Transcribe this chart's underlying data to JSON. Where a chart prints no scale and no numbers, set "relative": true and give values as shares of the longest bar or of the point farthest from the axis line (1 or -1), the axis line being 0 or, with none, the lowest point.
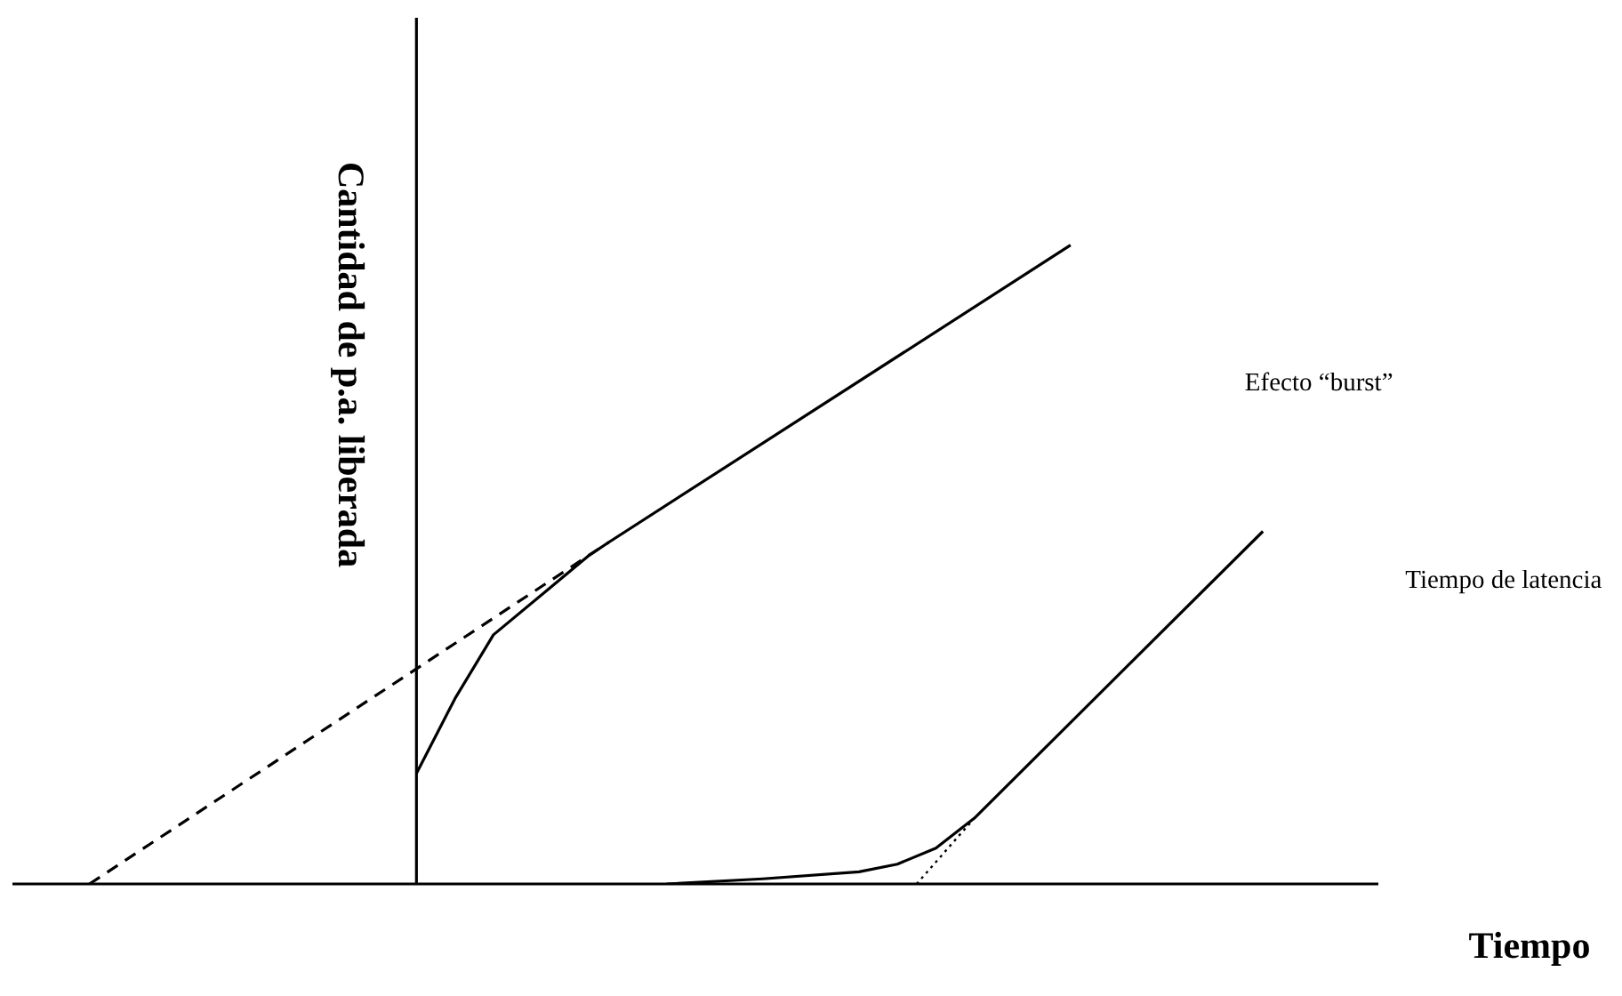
{
  "chart_data": {
    "type": "line",
    "xlabel": "Tiempo",
    "ylabel": "Cantidad de p.a. liberada",
    "relative": true,
    "tick_labels": false,
    "grid": false,
    "legend": false,
    "marker": "none",
    "categories": [
      null,
      null,
      null,
      null,
      null,
      null,
      null,
      null,
      null,
      null,
      null,
      null,
      null,
      null,
      null,
      null,
      null,
      null,
      null,
      null,
      null,
      null,
      null,
      null,
      null,
      null,
      null,
      null,
      null,
      null,
      null,
      null,
      null,
      null,
      null,
      null,
      null,
      null,
      null,
      null,
      null,
      null,
      null,
      null,
      null,
      null,
      null,
      null,
      null,
      null,
      null,
      null,
      null,
      null,
      null,
      null,
      null,
      null,
      null,
      null,
      null,
      null,
      null,
      null,
      null,
      null,
      null,
      null,
      null,
      null,
      null,
      null
    ],
    "series": [
      {
        "name": "Efecto “burst”",
        "color": "#000000",
        "line_style": "solid",
        "values": [
          null,
          null,
          null,
          null,
          null,
          null,
          null,
          null,
          null,
          null,
          null,
          null,
          null,
          null,
          null,
          null,
          null,
          null,
          null,
          null,
          null,
          0.173,
          null,
          0.29,
          null,
          0.39,
          null,
          null,
          0.465,
          null,
          0.515,
          0.535,
          null,
          null,
          null,
          null,
          null,
          null,
          null,
          null,
          null,
          null,
          null,
          null,
          null,
          null,
          null,
          null,
          null,
          null,
          null,
          null,
          null,
          null,
          null,
          1,
          null,
          null,
          null,
          null,
          null,
          null,
          null,
          null,
          null,
          null,
          null,
          null,
          null,
          null,
          null,
          null
        ]
      },
      {
        "color": "#000000",
        "line_style": "dashed",
        "values": [
          null,
          null,
          null,
          null,
          0,
          null,
          null,
          null,
          null,
          null,
          null,
          null,
          null,
          null,
          null,
          null,
          null,
          null,
          null,
          null,
          null,
          null,
          null,
          null,
          null,
          null,
          null,
          null,
          null,
          null,
          null,
          0.535,
          null,
          null,
          null,
          null,
          null,
          null,
          null,
          null,
          null,
          null,
          null,
          null,
          null,
          null,
          null,
          null,
          null,
          null,
          null,
          null,
          null,
          null,
          null,
          null,
          null,
          null,
          null,
          null,
          null,
          null,
          null,
          null,
          null,
          null,
          null,
          null,
          null,
          null,
          null,
          null
        ]
      },
      {
        "name": "Tiempo de latencia",
        "color": "#000000",
        "line_style": "solid",
        "values": [
          null,
          null,
          null,
          null,
          null,
          null,
          null,
          null,
          null,
          null,
          null,
          null,
          null,
          null,
          null,
          null,
          null,
          null,
          null,
          null,
          null,
          null,
          null,
          null,
          null,
          null,
          null,
          null,
          null,
          null,
          null,
          null,
          null,
          null,
          0,
          null,
          null,
          null,
          null,
          0.008,
          null,
          null,
          null,
          null,
          0.019,
          null,
          0.031,
          null,
          0.056,
          null,
          0.103,
          null,
          null,
          null,
          null,
          null,
          null,
          null,
          null,
          null,
          null,
          null,
          null,
          null,
          null,
          0.552,
          null,
          null,
          null,
          null,
          null,
          null
        ]
      },
      {
        "color": "#000000",
        "line_style": "dotted",
        "values": [
          null,
          null,
          null,
          null,
          null,
          null,
          null,
          null,
          null,
          null,
          null,
          null,
          null,
          null,
          null,
          null,
          null,
          null,
          null,
          null,
          null,
          null,
          null,
          null,
          null,
          null,
          null,
          null,
          null,
          null,
          null,
          null,
          null,
          null,
          null,
          null,
          null,
          null,
          null,
          null,
          null,
          null,
          null,
          null,
          null,
          null,
          null,
          0,
          null,
          null,
          0.103,
          null,
          null,
          null,
          null,
          null,
          null,
          null,
          null,
          null,
          null,
          null,
          null,
          null,
          null,
          null,
          null,
          null,
          null,
          null,
          null,
          null
        ]
      }
    ]
  }
}
